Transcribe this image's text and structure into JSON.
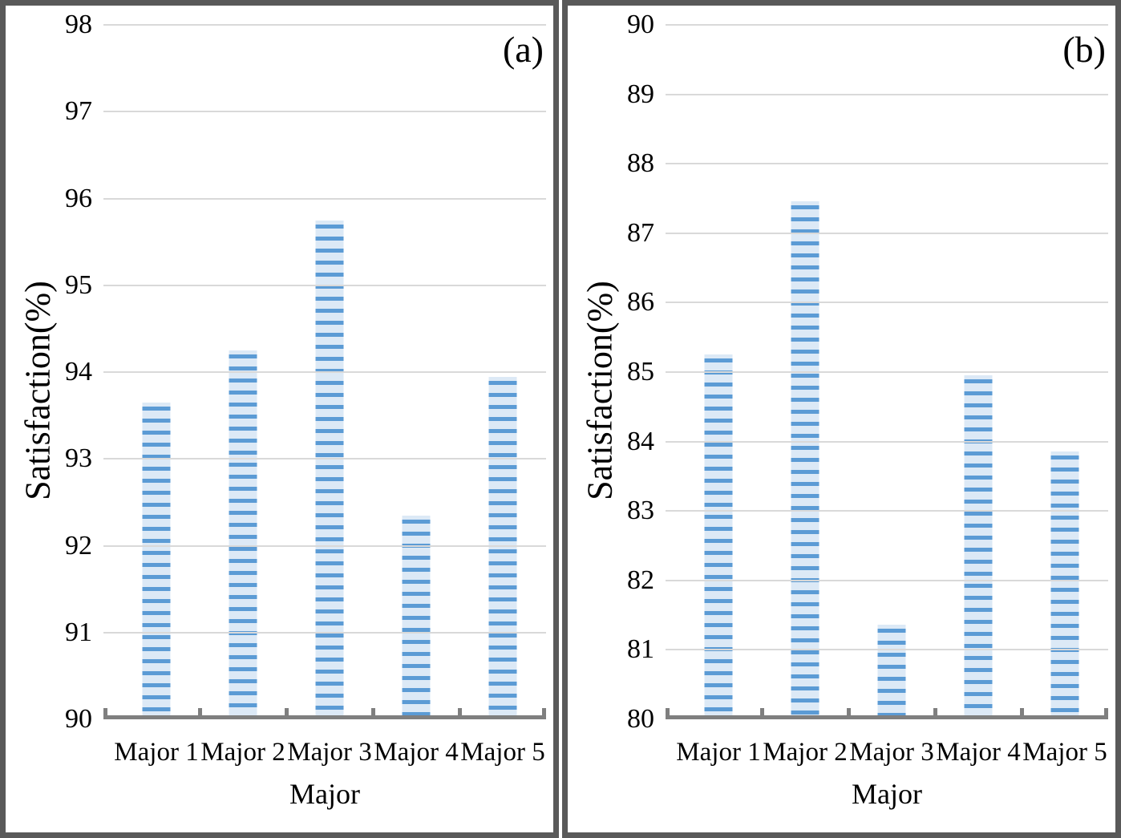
{
  "figure": {
    "panel_count": 2,
    "colors": {
      "bar_fill": "#dce9f6",
      "bar_stripe": "#5b9bd5",
      "gridline": "#d9d9d9",
      "axis_line": "#7f7f7f",
      "panel_border": "#595959",
      "text": "#000000",
      "background": "#ffffff"
    }
  },
  "chart_data": [
    {
      "type": "bar",
      "annotation": "(a)",
      "title": "",
      "xlabel": "Major",
      "ylabel": "Satisfaction(%)",
      "categories": [
        "Major 1",
        "Major 2",
        "Major 3",
        "Major 4",
        "Major 5"
      ],
      "values": [
        93.6,
        94.2,
        95.7,
        92.3,
        93.9
      ],
      "ylim": [
        90,
        98
      ],
      "yticks": [
        90,
        91,
        92,
        93,
        94,
        95,
        96,
        97,
        98
      ],
      "grid": true,
      "legend": false,
      "bar_pattern": "horizontal-stripes"
    },
    {
      "type": "bar",
      "annotation": "(b)",
      "title": "",
      "xlabel": "Major",
      "ylabel": "Satisfaction(%)",
      "categories": [
        "Major 1",
        "Major 2",
        "Major 3",
        "Major 4",
        "Major 5"
      ],
      "values": [
        85.2,
        87.4,
        81.3,
        84.9,
        83.8
      ],
      "ylim": [
        80,
        90
      ],
      "yticks": [
        80,
        81,
        82,
        83,
        84,
        85,
        86,
        87,
        88,
        89,
        90
      ],
      "grid": true,
      "legend": false,
      "bar_pattern": "horizontal-stripes"
    }
  ]
}
